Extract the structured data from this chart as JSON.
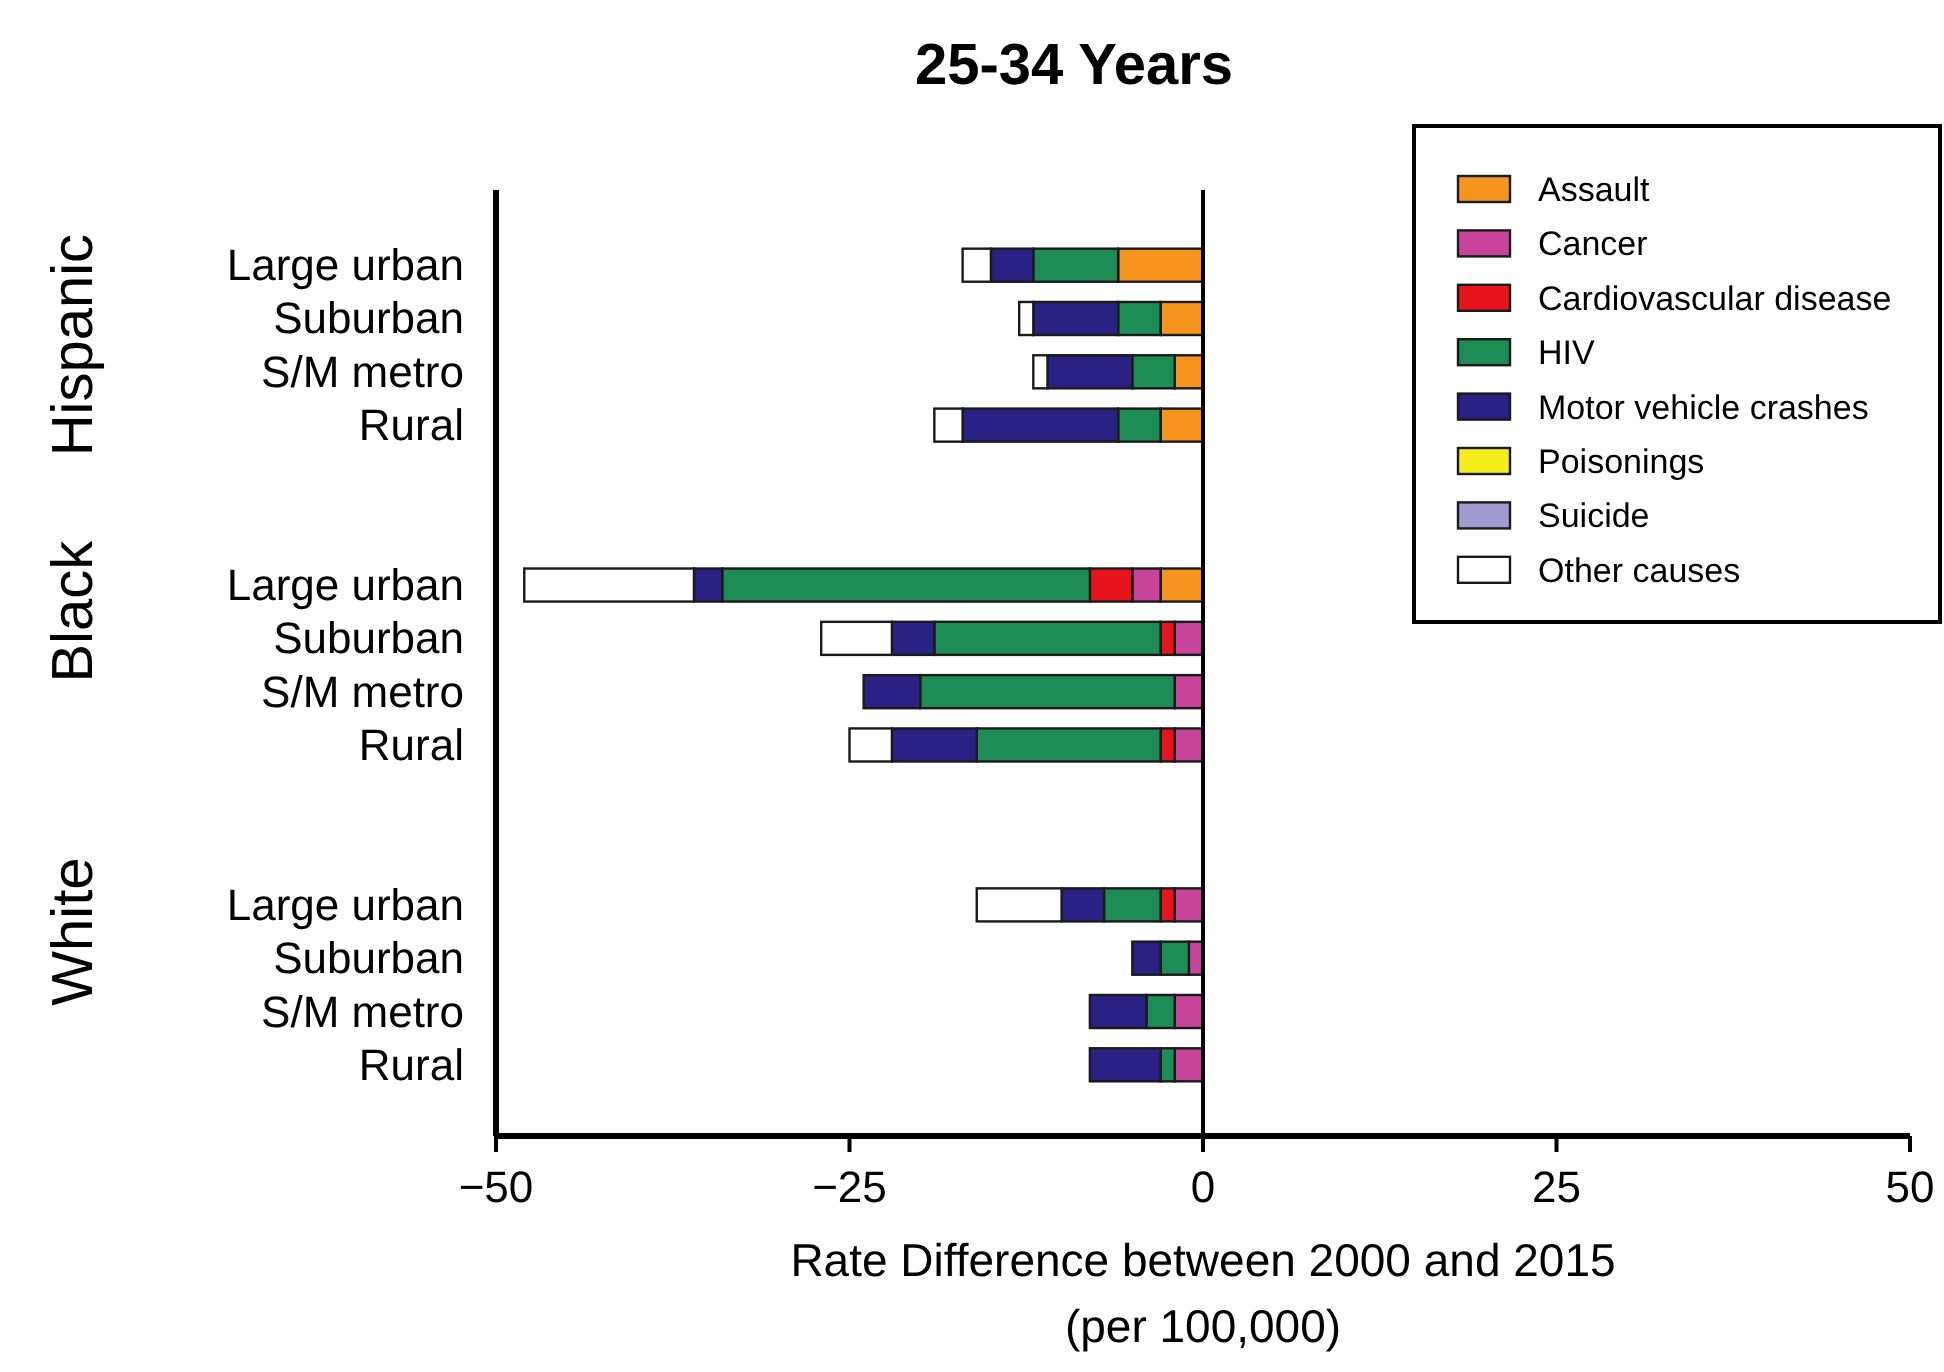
{
  "chart_data": {
    "type": "bar",
    "orientation": "horizontal",
    "stacked": true,
    "title": "25-34 Years",
    "xlabel": "Rate Difference between 2000 and 2015\n(per 100,000)",
    "categories": [
      "Large urban",
      "Suburban",
      "S/M metro",
      "Rural",
      null,
      null,
      "Large urban",
      "Suburban",
      "S/M metro",
      "Rural",
      null,
      null,
      "Large urban",
      "Suburban",
      "S/M metro",
      "Rural"
    ],
    "xlim": [
      -50,
      50
    ],
    "xticks": [
      {
        "value": -50,
        "label": "−50"
      },
      {
        "value": -25,
        "label": "−25"
      },
      0,
      25,
      50
    ],
    "legend": "top right",
    "grid": false,
    "ref_lines": [
      {
        "axis": "x",
        "value": 0,
        "color": "#000000"
      }
    ],
    "annotations": [
      "Hispanic",
      "Black",
      "White"
    ],
    "series": [
      {
        "name": "Assault",
        "color": "#f7941d",
        "values": [
          -6,
          -3,
          -2,
          -3,
          null,
          null,
          -3,
          null,
          null,
          null,
          null,
          null,
          null,
          null,
          null,
          null
        ]
      },
      {
        "name": "Cancer",
        "color": "#c8449a",
        "values": [
          null,
          null,
          null,
          null,
          null,
          null,
          -2,
          -2,
          -2,
          -2,
          null,
          null,
          -2,
          -1,
          -2,
          -2
        ]
      },
      {
        "name": "Cardiovascular disease",
        "color": "#e8141b",
        "values": [
          null,
          null,
          null,
          null,
          null,
          null,
          -3,
          -1,
          null,
          -1,
          null,
          null,
          -1,
          null,
          null,
          null
        ]
      },
      {
        "name": "HIV",
        "color": "#1e8c55",
        "values": [
          -6,
          -3,
          -3,
          -3,
          null,
          null,
          -26,
          -16,
          -18,
          -13,
          null,
          null,
          -4,
          -2,
          -2,
          -1
        ]
      },
      {
        "name": "Motor vehicle crashes",
        "color": "#2a2185",
        "values": [
          -3,
          -6,
          -6,
          -11,
          null,
          null,
          -2,
          -3,
          -4,
          -6,
          null,
          null,
          -3,
          -2,
          -4,
          -5
        ]
      },
      {
        "name": "Poisonings",
        "color": "#f5ee1a",
        "values": [
          null,
          null,
          null,
          null,
          null,
          null,
          null,
          null,
          null,
          null,
          null,
          null,
          null,
          null,
          null,
          null
        ]
      },
      {
        "name": "Suicide",
        "color": "#a09ad0",
        "values": [
          null,
          null,
          null,
          null,
          null,
          null,
          null,
          null,
          null,
          null,
          null,
          null,
          null,
          null,
          null,
          null
        ]
      },
      {
        "name": "Other causes",
        "color": "#ffffff",
        "values": [
          -2,
          -1,
          -1,
          -2,
          null,
          null,
          -12,
          -5,
          null,
          -3,
          null,
          null,
          -6,
          null,
          null,
          null
        ]
      }
    ]
  }
}
